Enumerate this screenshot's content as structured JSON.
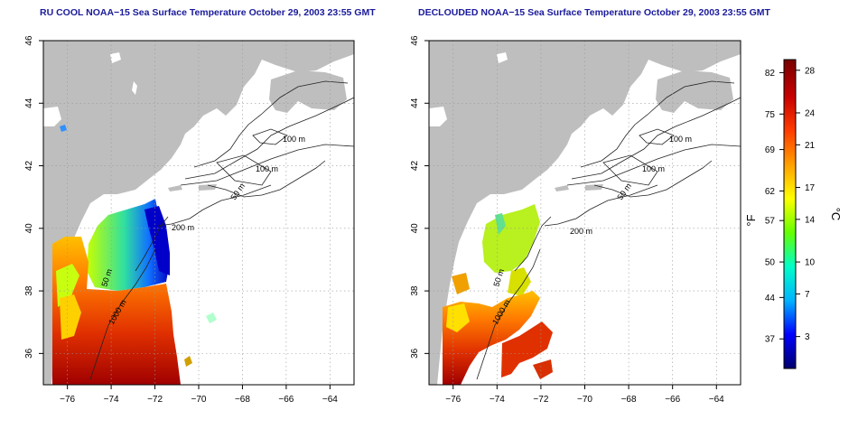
{
  "panels": [
    {
      "id": "left",
      "title": "RU COOL NOAA−15 Sea Surface Temperature October 29, 2003 23:55 GMT",
      "depth_labels": [
        "100 m",
        "100 m",
        "50 m",
        "200 m",
        "50 m",
        "1000 m"
      ]
    },
    {
      "id": "right",
      "title": "DECLOUDED NOAA−15 Sea Surface Temperature October 29, 2003 23:55 GMT",
      "depth_labels": [
        "100 m",
        "100 m",
        "50 m",
        "200 m",
        "50 m",
        "1000 m"
      ]
    }
  ],
  "axes": {
    "x_ticks": [
      "−76",
      "−74",
      "−72",
      "−70",
      "−68",
      "−66",
      "−64"
    ],
    "y_ticks": [
      "36",
      "38",
      "40",
      "42",
      "44",
      "46"
    ],
    "lon_range": [
      -77.1,
      -62.9
    ],
    "lat_range": [
      35.0,
      46.0
    ],
    "grid": "dotted"
  },
  "colorbar": {
    "unit_f": "°F",
    "unit_c": "°C",
    "f_ticks": [
      "82",
      "75",
      "69",
      "62",
      "57",
      "50",
      "44",
      "37"
    ],
    "c_ticks": [
      "28",
      "24",
      "21",
      "17",
      "14",
      "10",
      "7",
      "3"
    ],
    "f_values": [
      82,
      75,
      69,
      62,
      57,
      50,
      44,
      37
    ],
    "c_values": [
      28,
      24,
      21,
      17,
      14,
      10,
      7,
      3
    ],
    "c_range": [
      0,
      29
    ],
    "colors": [
      "#00006e",
      "#0000ff",
      "#00b4ff",
      "#00ffc8",
      "#64ff00",
      "#ffff00",
      "#ffa000",
      "#ff3c00",
      "#c80000",
      "#780000"
    ]
  },
  "colors": {
    "land": "#bebebe",
    "title": "#1a1a9c",
    "grid": "#9a9a9a",
    "contour": "#222222"
  }
}
